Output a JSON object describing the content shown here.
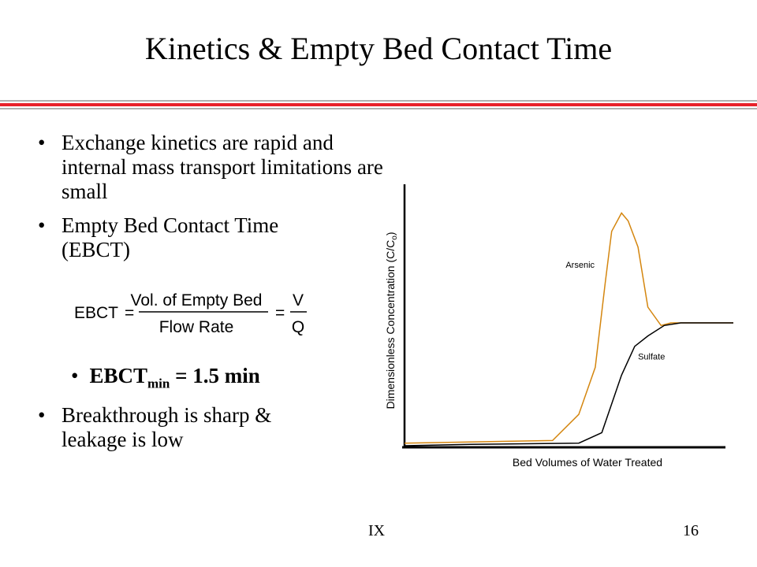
{
  "slide": {
    "title": "Kinetics & Empty Bed Contact Time",
    "bullet1": "Exchange kinetics are rapid and internal mass transport limitations are small",
    "bullet2": "Empty Bed Contact Time (EBCT)",
    "formula": {
      "lhs": "EBCT",
      "num1": "Vol. of Empty Bed",
      "den1": "Flow Rate",
      "num2": "V",
      "den2": "Q"
    },
    "sub_bullet": {
      "label": "EBCT",
      "subscript": "min",
      "rest": " = 1.5 min"
    },
    "bullet3": "Breakthrough is sharp & leakage is low",
    "footer_left": "IX",
    "footer_right": "16",
    "bullet_glyph": "•",
    "colors": {
      "rule_red": "#e8212a",
      "rule_gray": "#b0b0b0",
      "arsenic": "#d4860f",
      "sulfate": "#000000"
    }
  },
  "chart_data": {
    "type": "line",
    "title": "",
    "xlabel": "Bed Volumes of Water Treated",
    "ylabel": "Dimensionless Concentration (C/Co)",
    "ylabel_base": "Dimensionless Concentration (C/C",
    "ylabel_sub": "o",
    "ylabel_end": ")",
    "xlim": [
      0,
      100
    ],
    "ylim": [
      0,
      100
    ],
    "grid": false,
    "legend": "none",
    "series": [
      {
        "name": "Arsenic",
        "color": "#d4860f",
        "x": [
          0,
          45,
          53,
          58,
          61,
          63,
          66,
          68,
          71,
          74,
          78,
          81,
          85,
          100
        ],
        "y": [
          1,
          2,
          12,
          30,
          62,
          82,
          89,
          86,
          76,
          53,
          46,
          47,
          47,
          47
        ]
      },
      {
        "name": "Sulfate",
        "color": "#000000",
        "x": [
          0,
          20,
          53,
          60,
          66,
          70,
          74,
          79,
          84,
          100
        ],
        "y": [
          0,
          0.5,
          1,
          5,
          27,
          38,
          42,
          46,
          47,
          47
        ]
      }
    ],
    "labels": [
      {
        "text": "Arsenic",
        "x": 49,
        "y": 68
      },
      {
        "text": "Sulfate",
        "x": 71,
        "y": 33
      }
    ]
  }
}
